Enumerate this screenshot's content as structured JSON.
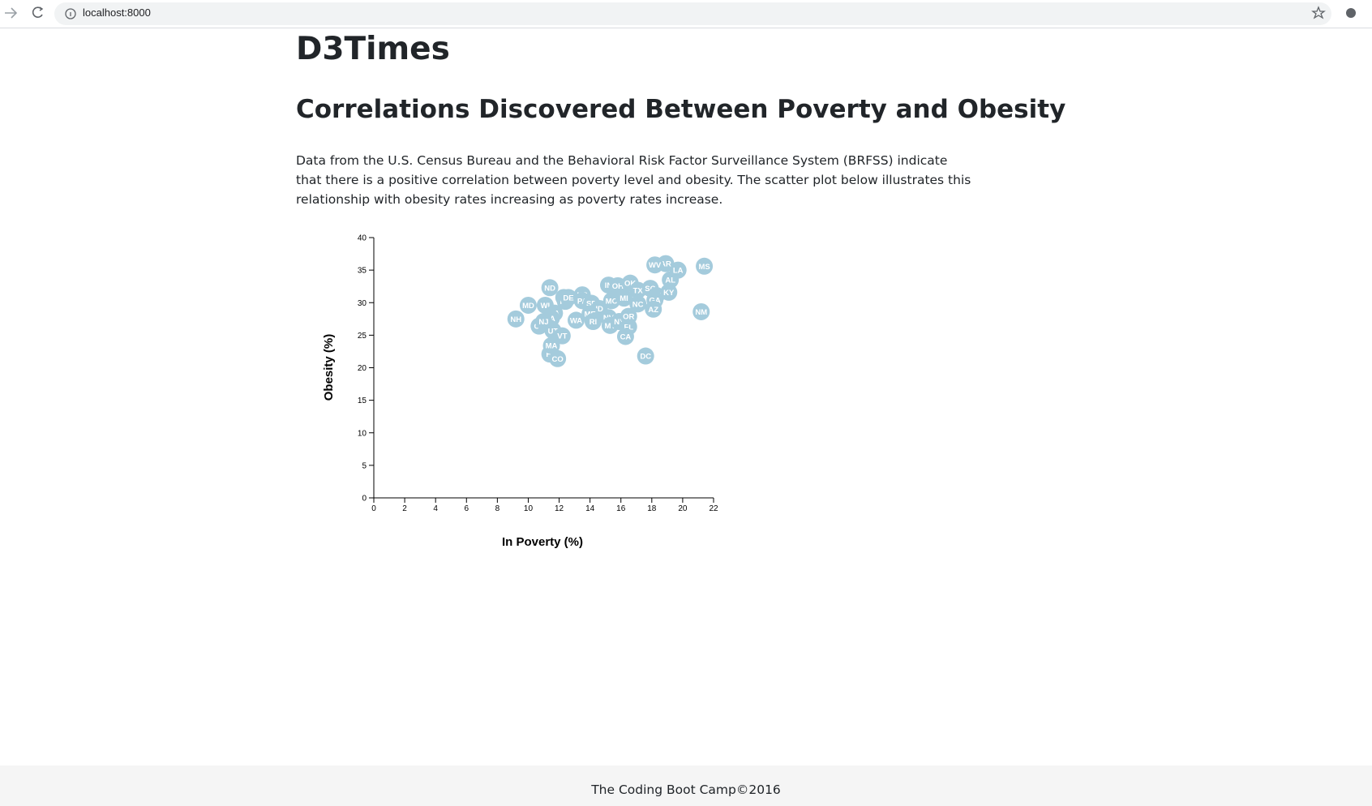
{
  "browser": {
    "url": "localhost:8000"
  },
  "header": {
    "title": "D3Times",
    "subtitle": "Correlations Discovered Between Poverty and Obesity",
    "text": "Data from the U.S. Census Bureau and the Behavioral Risk Factor Surveillance System (BRFSS) indicate that there is a positive correlation between poverty level and obesity. The scatter plot below illustrates this relationship with obesity rates increasing as poverty rates increase."
  },
  "chart_data": {
    "type": "scatter",
    "x_label": "In Poverty (%)",
    "y_label": "Obesity (%)",
    "color": "#a4cbdc",
    "labels": [
      "NH",
      "MD",
      "ND",
      "WI",
      "VA",
      "IA",
      "UT",
      "CT",
      "NJ",
      "HI",
      "MA",
      "CO",
      "VT",
      "IL",
      "NE",
      "DE",
      "KS",
      "WA",
      "PA",
      "SD",
      "ID",
      "ME",
      "RI",
      "NV",
      "MT",
      "NY",
      "FL",
      "CA",
      "IN",
      "OH",
      "OK",
      "MO",
      "MI",
      "TX",
      "SC",
      "TN",
      "GA",
      "NC",
      "OR",
      "AZ",
      "AL",
      "KY",
      "LA",
      "AR",
      "WV",
      "MS",
      "NM",
      "DC"
    ],
    "x": [
      9.2,
      10.0,
      11.4,
      11.1,
      11.7,
      11.5,
      11.6,
      10.7,
      11.0,
      11.4,
      11.5,
      11.9,
      12.2,
      12.3,
      12.4,
      12.6,
      13.5,
      13.1,
      13.5,
      14.1,
      14.6,
      14.0,
      14.2,
      15.2,
      15.3,
      15.9,
      16.5,
      16.3,
      15.2,
      15.8,
      16.6,
      15.4,
      16.2,
      17.1,
      17.9,
      18.3,
      18.2,
      17.1,
      16.5,
      18.1,
      19.2,
      19.1,
      19.7,
      18.9,
      18.2,
      21.4,
      21.2,
      17.6
    ],
    "values": [
      27.5,
      29.6,
      32.3,
      29.6,
      28.4,
      27.6,
      25.7,
      26.4,
      27.1,
      22.1,
      23.4,
      21.4,
      24.9,
      30.8,
      30.2,
      30.8,
      31.2,
      27.3,
      30.3,
      29.9,
      29.1,
      28.3,
      27.1,
      27.7,
      26.5,
      27.1,
      26.3,
      24.8,
      32.7,
      32.6,
      33.0,
      30.3,
      30.7,
      31.9,
      32.2,
      31.1,
      30.4,
      29.8,
      27.9,
      29.0,
      33.5,
      31.6,
      35.0,
      36.0,
      35.8,
      35.6,
      28.6,
      21.8
    ],
    "xlim": [
      0,
      22
    ],
    "xticks": [
      0,
      2,
      4,
      6,
      8,
      10,
      12,
      14,
      16,
      18,
      20,
      22
    ],
    "ylim": [
      0,
      40
    ],
    "yticks": [
      0,
      5,
      10,
      15,
      20,
      25,
      30,
      35,
      40
    ]
  },
  "footer": {
    "text": "The Coding Boot Camp©2016"
  }
}
